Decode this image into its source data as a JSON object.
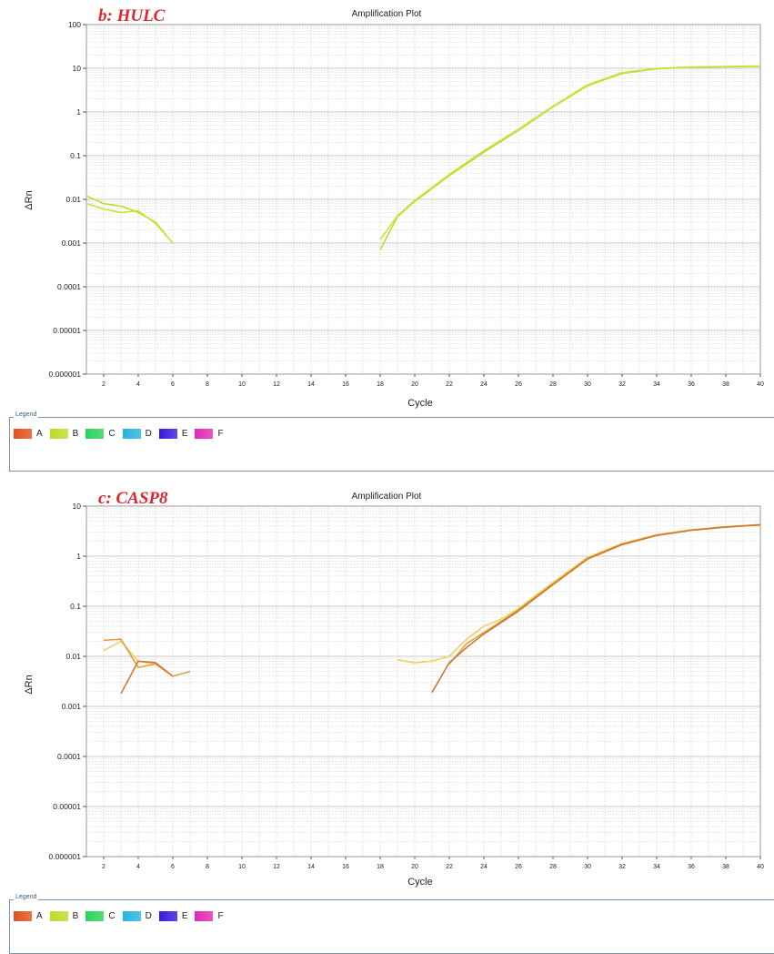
{
  "colors": {
    "grid": "#c8c8c8",
    "plot_border": "#999999",
    "title_red": "#e0262f"
  },
  "legend": {
    "title": "Legend",
    "items": [
      {
        "label": "A",
        "color": "#e0521a"
      },
      {
        "label": "B",
        "color": "#b7de2a"
      },
      {
        "label": "C",
        "color": "#2ad35a"
      },
      {
        "label": "D",
        "color": "#26b4e0"
      },
      {
        "label": "E",
        "color": "#3a1adc"
      },
      {
        "label": "F",
        "color": "#e02ab4"
      }
    ]
  },
  "chart_data": [
    {
      "type": "line",
      "panel_label": "b: HULC",
      "title": "Amplification Plot",
      "xlabel": "Cycle",
      "ylabel": "ΔRn",
      "yscale": "log",
      "xlim": [
        1,
        40
      ],
      "ylim": [
        1e-06,
        100
      ],
      "grid": true,
      "x_ticks": [
        2,
        4,
        6,
        8,
        10,
        12,
        14,
        16,
        18,
        20,
        22,
        24,
        26,
        28,
        30,
        32,
        34,
        36,
        38,
        40
      ],
      "y_ticks": [
        1e-06,
        1e-05,
        0.0001,
        0.001,
        0.01,
        0.1,
        1,
        10,
        100
      ],
      "y_tick_labels": [
        "0.000001",
        "0.00001",
        "0.0001",
        "0.001",
        "0.01",
        "0.1",
        "1",
        "10",
        "100"
      ],
      "series": [
        {
          "color": "#b7de2a",
          "segments": [
            [
              [
                1,
                0.012
              ],
              [
                2,
                0.008
              ],
              [
                3,
                0.007
              ],
              [
                4,
                0.005
              ],
              [
                5,
                0.003
              ],
              [
                6,
                0.001
              ]
            ],
            [
              [
                18,
                0.0007
              ],
              [
                19,
                0.004
              ],
              [
                20,
                0.009
              ],
              [
                22,
                0.035
              ],
              [
                24,
                0.12
              ],
              [
                26,
                0.38
              ],
              [
                28,
                1.3
              ],
              [
                30,
                4.0
              ],
              [
                32,
                7.6
              ],
              [
                34,
                9.7
              ],
              [
                36,
                10.5
              ],
              [
                38,
                10.8
              ],
              [
                40,
                11.0
              ]
            ]
          ]
        },
        {
          "color": "#cfe03a",
          "segments": [
            [
              [
                1,
                0.008
              ],
              [
                2,
                0.006
              ],
              [
                3,
                0.005
              ],
              [
                4,
                0.0055
              ],
              [
                5,
                0.0028
              ],
              [
                6,
                0.001
              ]
            ],
            [
              [
                18,
                0.0012
              ],
              [
                19,
                0.0042
              ],
              [
                20,
                0.0095
              ],
              [
                22,
                0.037
              ],
              [
                24,
                0.13
              ],
              [
                26,
                0.4
              ],
              [
                28,
                1.35
              ],
              [
                30,
                4.2
              ],
              [
                32,
                7.9
              ],
              [
                34,
                9.9
              ],
              [
                36,
                10.7
              ],
              [
                38,
                11.0
              ],
              [
                40,
                11.2
              ]
            ]
          ]
        }
      ]
    },
    {
      "type": "line",
      "panel_label": "c: CASP8",
      "title": "Amplification Plot",
      "xlabel": "Cycle",
      "ylabel": "ΔRn",
      "yscale": "log",
      "xlim": [
        1,
        40
      ],
      "ylim": [
        1e-06,
        10
      ],
      "grid": true,
      "x_ticks": [
        2,
        4,
        6,
        8,
        10,
        12,
        14,
        16,
        18,
        20,
        22,
        24,
        26,
        28,
        30,
        32,
        34,
        36,
        38,
        40
      ],
      "y_ticks": [
        1e-06,
        1e-05,
        0.0001,
        0.001,
        0.01,
        0.1,
        1,
        10
      ],
      "y_tick_labels": [
        "0.000001",
        "0.00001",
        "0.0001",
        "0.001",
        "0.01",
        "0.1",
        "1",
        "10"
      ],
      "series": [
        {
          "color": "#f2d060",
          "segments": [
            [
              [
                2,
                0.013
              ],
              [
                3,
                0.02
              ],
              [
                4,
                0.008
              ],
              [
                5,
                0.007
              ]
            ],
            [
              [
                19,
                0.0085
              ],
              [
                20,
                0.0075
              ],
              [
                21,
                0.008
              ],
              [
                22,
                0.01
              ],
              [
                23,
                0.022
              ],
              [
                24,
                0.04
              ],
              [
                25,
                0.055
              ],
              [
                26,
                0.09
              ],
              [
                28,
                0.3
              ],
              [
                30,
                0.95
              ],
              [
                32,
                1.8
              ],
              [
                34,
                2.7
              ],
              [
                36,
                3.4
              ],
              [
                38,
                3.9
              ],
              [
                40,
                4.3
              ]
            ]
          ]
        },
        {
          "color": "#e0a040",
          "segments": [
            [
              [
                2,
                0.021
              ],
              [
                3,
                0.022
              ],
              [
                4,
                0.006
              ],
              [
                5,
                0.007
              ],
              [
                6,
                0.004
              ],
              [
                7,
                0.005
              ]
            ],
            [
              [
                22,
                0.007
              ],
              [
                23,
                0.018
              ],
              [
                24,
                0.03
              ],
              [
                25,
                0.05
              ],
              [
                26,
                0.085
              ],
              [
                28,
                0.28
              ],
              [
                30,
                0.9
              ],
              [
                32,
                1.75
              ],
              [
                34,
                2.6
              ],
              [
                36,
                3.3
              ],
              [
                38,
                3.85
              ],
              [
                40,
                4.25
              ]
            ]
          ]
        },
        {
          "color": "#d07830",
          "segments": [
            [
              [
                3,
                0.0018
              ],
              [
                4,
                0.008
              ],
              [
                5,
                0.0075
              ],
              [
                6,
                0.004
              ]
            ],
            [
              [
                21,
                0.0019
              ],
              [
                22,
                0.0075
              ],
              [
                23,
                0.015
              ],
              [
                24,
                0.028
              ],
              [
                26,
                0.08
              ],
              [
                28,
                0.27
              ],
              [
                30,
                0.88
              ],
              [
                32,
                1.7
              ],
              [
                34,
                2.6
              ],
              [
                36,
                3.3
              ],
              [
                38,
                3.8
              ],
              [
                40,
                4.2
              ]
            ]
          ]
        }
      ]
    }
  ]
}
